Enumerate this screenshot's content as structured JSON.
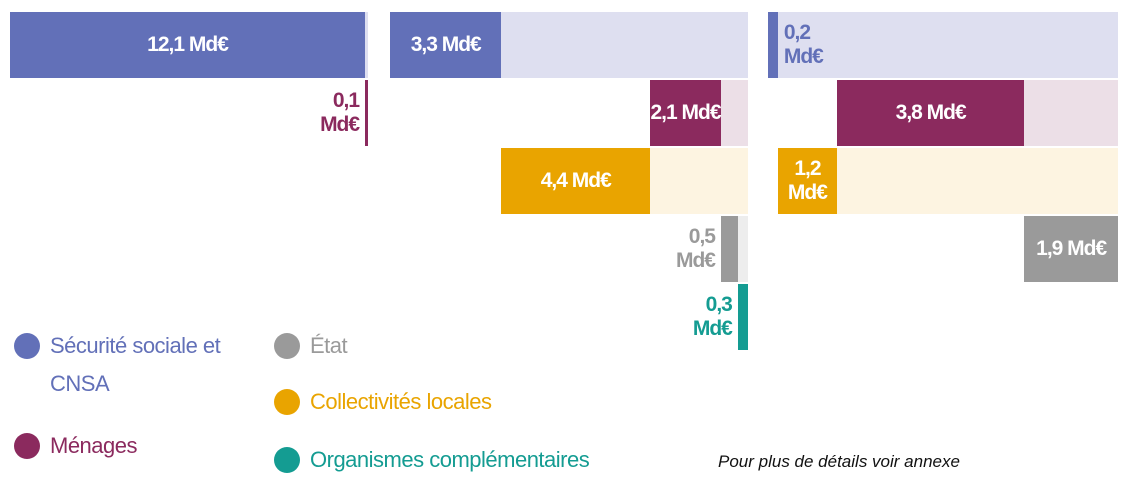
{
  "legend": [
    {
      "name": "Sécurité sociale et CNSA",
      "color": "#6270b8",
      "band": "#dedff0"
    },
    {
      "name": "Ménages",
      "color": "#8b2a5e",
      "band": "#ecdfe7"
    },
    {
      "name": "Collectivités locales",
      "color": "#e9a400",
      "band": "#fdf4e1"
    },
    {
      "name": "État",
      "color": "#9a9a9a",
      "band": "#ededed"
    },
    {
      "name": "Organismes complémentaires",
      "color": "#149c92",
      "band": "#e3f3f1"
    }
  ],
  "note": "Pour plus de détails voir annexe",
  "chart_data": [
    {
      "type": "bar",
      "values": [
        12.1,
        0.1,
        null,
        null,
        null
      ],
      "value_labels": [
        "12,1 Md€",
        "0,1 Md€",
        null,
        null,
        null
      ]
    },
    {
      "type": "bar",
      "values": [
        3.3,
        2.1,
        4.4,
        0.5,
        0.3
      ],
      "value_labels": [
        "3,3 Md€",
        "2,1 Md€",
        "4,4 Md€",
        "0,5 Md€",
        "0,3 Md€"
      ]
    },
    {
      "type": "bar",
      "values": [
        0.2,
        3.8,
        1.2,
        1.9,
        null
      ],
      "value_labels": [
        "0,2 Md€",
        "3,8 Md€",
        "1,2 Md€",
        "1,9 Md€",
        null
      ]
    }
  ]
}
